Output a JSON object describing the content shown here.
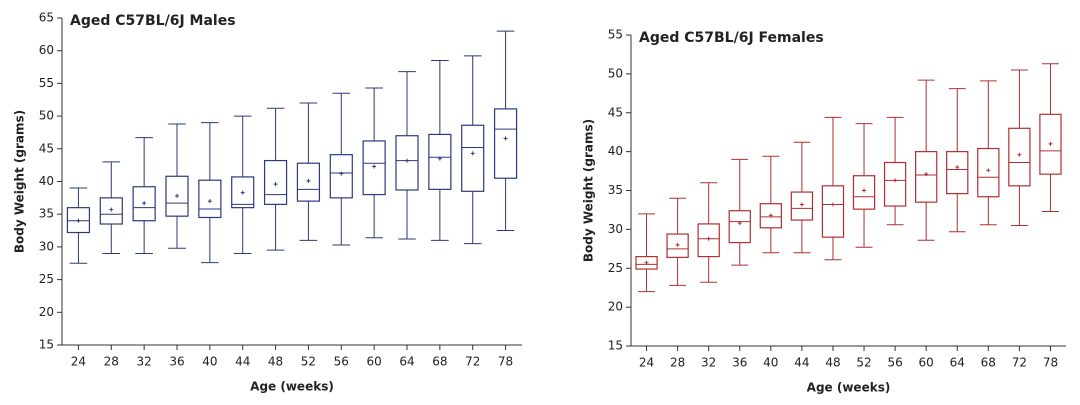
{
  "chart_data": [
    {
      "type": "box",
      "title": "Aged C57BL/6J Males",
      "x_label": "Age (weeks)",
      "y_label": "Body Weight (grams)",
      "color": "#2b3a7a",
      "categories": [
        "24",
        "28",
        "32",
        "36",
        "40",
        "44",
        "48",
        "52",
        "56",
        "60",
        "64",
        "68",
        "72",
        "78"
      ],
      "min": [
        27.5,
        29,
        29,
        29.8,
        27.6,
        29,
        29.5,
        31,
        30.3,
        31.4,
        31.2,
        31,
        30.5,
        32.5
      ],
      "q1": [
        32.2,
        33.5,
        34,
        34.7,
        34.5,
        36,
        36.5,
        37,
        37.5,
        38,
        38.7,
        38.8,
        38.5,
        40.5
      ],
      "median": [
        34,
        35,
        36,
        36.7,
        35.8,
        36.5,
        38,
        38.8,
        41.3,
        42.8,
        43.2,
        43.7,
        45.2,
        48
      ],
      "q3": [
        36,
        37.5,
        39.2,
        40.8,
        40.2,
        40.7,
        43.2,
        42.8,
        44.1,
        46.2,
        47,
        47.2,
        48.6,
        51.1
      ],
      "max": [
        39,
        43,
        46.7,
        48.8,
        49,
        50,
        51.2,
        52,
        53.5,
        54.3,
        56.8,
        58.5,
        59.2,
        63
      ],
      "mean": [
        34,
        35.7,
        36.7,
        37.8,
        37,
        38.3,
        39.6,
        40.1,
        41.2,
        42.3,
        43.2,
        43.5,
        44.3,
        46.6
      ],
      "ylim": [
        15,
        65
      ],
      "yticks": [
        15,
        20,
        25,
        30,
        35,
        40,
        45,
        50,
        55,
        60,
        65
      ]
    },
    {
      "type": "box",
      "title": "Aged C57BL/6J Females",
      "x_label": "Age (weeks)",
      "y_label": "Body Weight (grams)",
      "color": "#b0302f",
      "categories": [
        "24",
        "28",
        "32",
        "36",
        "40",
        "44",
        "48",
        "52",
        "56",
        "60",
        "64",
        "68",
        "72",
        "78"
      ],
      "min": [
        22,
        22.8,
        23.2,
        25.4,
        27,
        27,
        26.1,
        27.7,
        30.6,
        28.6,
        29.7,
        30.6,
        30.5,
        32.3
      ],
      "q1": [
        24.9,
        26.4,
        26.5,
        28.3,
        30.2,
        31.2,
        29,
        32.6,
        33,
        33.5,
        34.6,
        34.2,
        35.6,
        37.1
      ],
      "median": [
        25.5,
        27.5,
        28.8,
        31,
        31.6,
        32.7,
        33.2,
        34.2,
        36.3,
        37,
        37.7,
        36.7,
        38.6,
        40.1
      ],
      "q3": [
        26.5,
        29.4,
        30.7,
        32.4,
        33.3,
        34.8,
        35.6,
        36.9,
        38.6,
        40,
        40,
        40.4,
        43,
        44.8
      ],
      "max": [
        32,
        34,
        36,
        39,
        39.4,
        41.2,
        44.4,
        43.6,
        44.4,
        49.2,
        48.1,
        49.1,
        50.5,
        51.3
      ],
      "mean": [
        25.7,
        28,
        28.8,
        30.8,
        31.8,
        33.2,
        33.2,
        35,
        36.3,
        37.1,
        38,
        37.6,
        39.6,
        41
      ],
      "ylim": [
        15,
        55
      ],
      "yticks": [
        15,
        20,
        25,
        30,
        35,
        40,
        45,
        50,
        55
      ]
    }
  ]
}
